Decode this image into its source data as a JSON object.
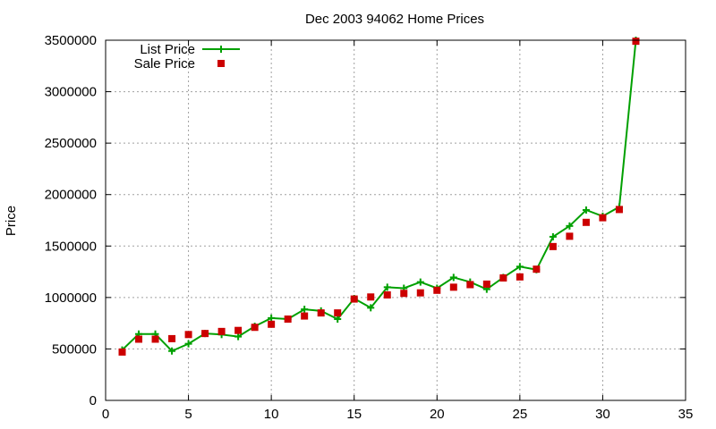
{
  "chart_data": {
    "type": "line",
    "title": "Dec 2003 94062 Home Prices",
    "xlabel": "",
    "ylabel": "Price",
    "xlim": [
      0,
      35
    ],
    "ylim": [
      0,
      3500000
    ],
    "xticks": [
      0,
      5,
      10,
      15,
      20,
      25,
      30,
      35
    ],
    "yticks": [
      0,
      500000,
      1000000,
      1500000,
      2000000,
      2500000,
      3000000,
      3500000
    ],
    "grid": true,
    "legend": "top-left",
    "series": [
      {
        "name": "List Price",
        "style": "lines+crosses",
        "color": "#00a000",
        "x": [
          1,
          2,
          3,
          4,
          5,
          6,
          7,
          8,
          9,
          10,
          11,
          12,
          13,
          14,
          15,
          16,
          17,
          18,
          19,
          20,
          21,
          22,
          23,
          24,
          25,
          26,
          27,
          28,
          29,
          30,
          31,
          32
        ],
        "values": [
          490000,
          645000,
          645000,
          480000,
          550000,
          650000,
          640000,
          620000,
          720000,
          800000,
          790000,
          885000,
          870000,
          790000,
          990000,
          900000,
          1100000,
          1090000,
          1150000,
          1090000,
          1195000,
          1150000,
          1080000,
          1195000,
          1300000,
          1270000,
          1590000,
          1695000,
          1850000,
          1790000,
          1880000,
          3500000
        ]
      },
      {
        "name": "Sale Price",
        "style": "squares",
        "color": "#cc0000",
        "x": [
          1,
          2,
          3,
          4,
          5,
          6,
          7,
          8,
          9,
          10,
          11,
          12,
          13,
          14,
          15,
          16,
          17,
          18,
          19,
          20,
          21,
          22,
          23,
          24,
          25,
          26,
          27,
          28,
          29,
          30,
          31,
          32
        ],
        "values": [
          470000,
          595000,
          595000,
          600000,
          640000,
          650000,
          670000,
          680000,
          710000,
          740000,
          790000,
          820000,
          850000,
          850000,
          985000,
          1005000,
          1025000,
          1040000,
          1045000,
          1070000,
          1100000,
          1125000,
          1130000,
          1190000,
          1200000,
          1275000,
          1495000,
          1595000,
          1730000,
          1775000,
          1855000,
          3490000
        ]
      }
    ]
  }
}
